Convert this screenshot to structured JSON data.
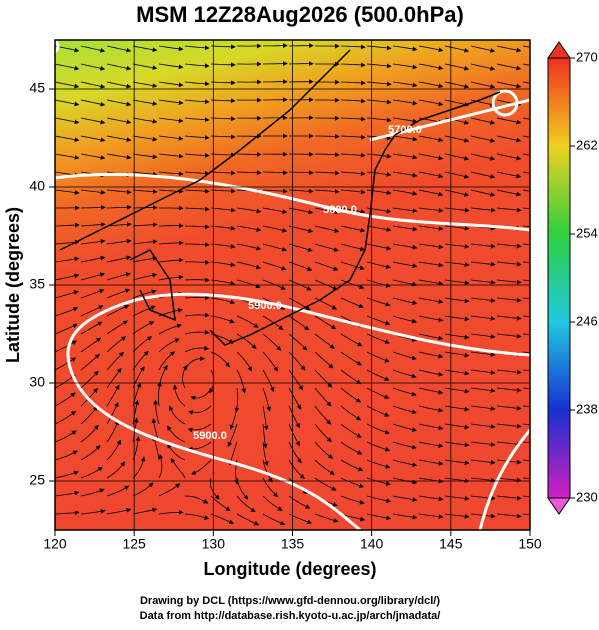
{
  "chart_data": {
    "type": "map",
    "title": "MSM 12Z28Aug2026 (500.0hPa)",
    "x_label": "Longitude (degrees)",
    "y_label": "Latitude  (degrees)",
    "xlim": [
      120,
      150
    ],
    "xticks": [
      120,
      125,
      130,
      135,
      140,
      145,
      150
    ],
    "ylim": [
      22.5,
      47.5
    ],
    "yticks": [
      25,
      30,
      35,
      40,
      45
    ],
    "grid": true,
    "colorbar": {
      "zlim": [
        230,
        270
      ],
      "ticks": [
        230,
        238,
        246,
        254,
        262,
        270
      ]
    },
    "contour_labels": [
      "5700.0",
      "5800.0",
      "5900.0",
      "5900.0"
    ]
  },
  "footer": [
    "Drawing by DCL (https://www.gfd-dennou.org/library/dcl/)",
    "Data from http://database.rish.kyoto-u.ac.jp/arch/jmadata/"
  ]
}
